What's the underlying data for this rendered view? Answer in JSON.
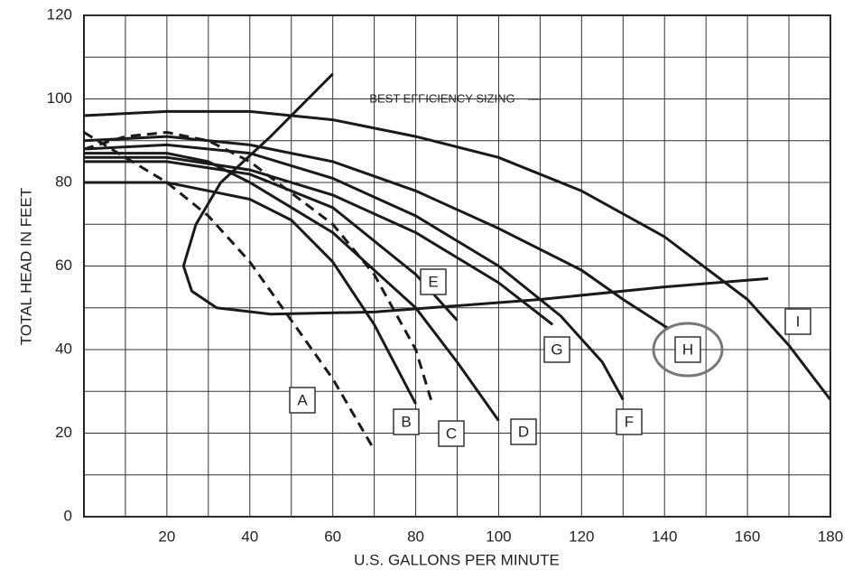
{
  "chart_data": {
    "type": "line",
    "x_label": "U.S. GALLONS PER MINUTE",
    "y_label": "TOTAL HEAD IN FEET",
    "xlim": [
      0,
      180
    ],
    "ylim": [
      0,
      120
    ],
    "xticks": [
      20,
      40,
      60,
      80,
      100,
      120,
      140,
      160,
      180
    ],
    "yticks": [
      0,
      20,
      40,
      60,
      80,
      100,
      120
    ],
    "xminor": [
      10,
      30,
      50,
      70,
      90,
      110,
      130,
      150,
      170
    ],
    "yminor": [
      10,
      30,
      50,
      70,
      90,
      110
    ],
    "grid": true,
    "series": [
      {
        "name": "A",
        "color": "#1a1a1a",
        "style": "dashed",
        "x": [
          0,
          10,
          20,
          30,
          40,
          50,
          60,
          70
        ],
        "values": [
          92,
          86,
          80,
          72,
          61,
          47,
          33,
          16
        ]
      },
      {
        "name": "B",
        "color": "#1a1a1a",
        "style": "solid",
        "x": [
          0,
          20,
          40,
          50,
          60,
          70,
          80
        ],
        "values": [
          80,
          80,
          76,
          71,
          61,
          46,
          27
        ]
      },
      {
        "name": "C",
        "color": "#1a1a1a",
        "style": "dashed",
        "x": [
          0,
          10,
          20,
          30,
          40,
          60,
          70,
          80,
          84
        ],
        "values": [
          88,
          91,
          92,
          90,
          85,
          70,
          58,
          40,
          27
        ]
      },
      {
        "name": "D",
        "color": "#1a1a1a",
        "style": "solid",
        "x": [
          0,
          20,
          30,
          40,
          60,
          80,
          90,
          100
        ],
        "values": [
          87,
          87,
          85,
          80,
          68,
          50,
          37,
          23
        ]
      },
      {
        "name": "E",
        "color": "#1a1a1a",
        "style": "solid",
        "x": [
          0,
          20,
          40,
          60,
          80,
          90
        ],
        "values": [
          85,
          85,
          82,
          74,
          58,
          47
        ]
      },
      {
        "name": "F",
        "color": "#1a1a1a",
        "style": "solid",
        "x": [
          0,
          20,
          40,
          60,
          80,
          100,
          115,
          125,
          130
        ],
        "values": [
          88,
          89,
          87,
          81,
          72,
          60,
          48,
          37,
          28
        ]
      },
      {
        "name": "G",
        "color": "#1a1a1a",
        "style": "solid",
        "x": [
          0,
          20,
          40,
          60,
          80,
          100,
          113
        ],
        "values": [
          86,
          86,
          83,
          77,
          68,
          56,
          46
        ]
      },
      {
        "name": "H",
        "color": "#1a1a1a",
        "style": "solid",
        "x": [
          0,
          20,
          40,
          60,
          80,
          100,
          120,
          130,
          141
        ],
        "values": [
          90,
          91,
          89,
          85,
          78,
          69,
          59,
          52,
          45
        ]
      },
      {
        "name": "I",
        "color": "#1a1a1a",
        "style": "solid",
        "x": [
          0,
          20,
          40,
          60,
          80,
          100,
          120,
          140,
          160,
          170,
          180
        ],
        "values": [
          96,
          97,
          97,
          95,
          91,
          86,
          78,
          67,
          52,
          41,
          28
        ]
      },
      {
        "name": "BEST EFFICIENCY SIZING",
        "color": "#1a1a1a",
        "style": "solid",
        "x": [
          60,
          45,
          33,
          27,
          24,
          26,
          32,
          45,
          70,
          110,
          140,
          165
        ],
        "values": [
          106,
          91,
          80,
          70,
          60,
          54,
          50,
          48.5,
          49,
          52,
          55,
          57
        ]
      }
    ]
  }
}
